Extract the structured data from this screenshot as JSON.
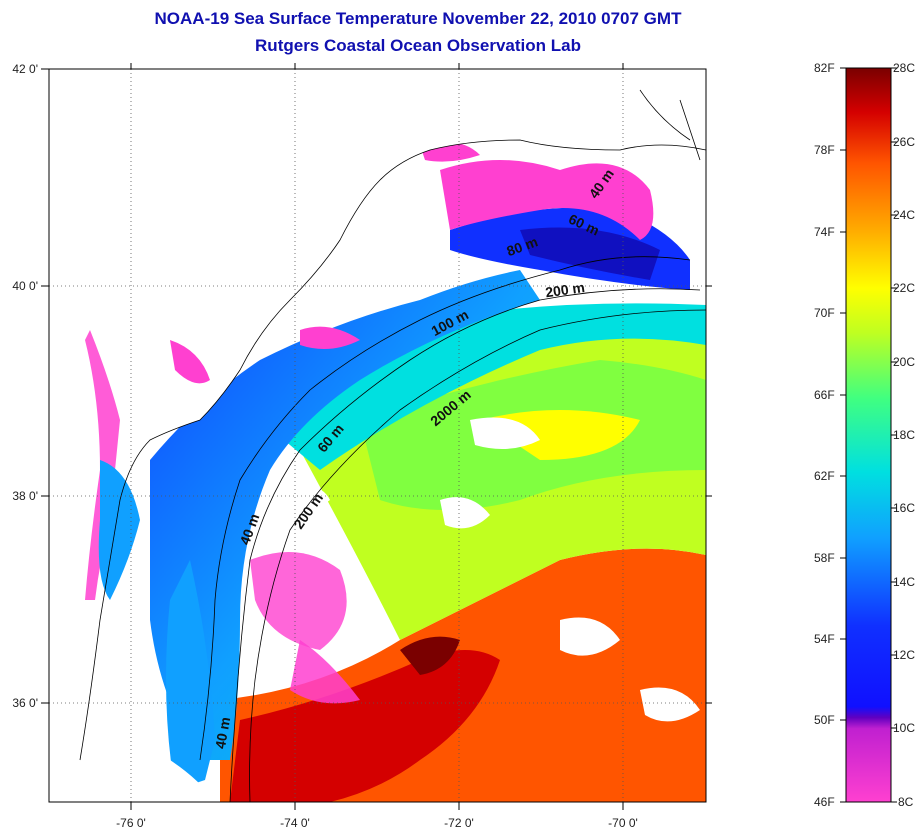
{
  "header": {
    "title": "NOAA-19 Sea Surface Temperature November 22, 2010 0707 GMT",
    "subtitle": "Rutgers Coastal Ocean Observation Lab"
  },
  "map": {
    "lat_labels": [
      "42 0'",
      "40 0'",
      "38 0'",
      "36 0'"
    ],
    "lon_labels": [
      "-76 0'",
      "-74 0'",
      "-72 0'",
      "-70 0'"
    ],
    "contour_labels": [
      "40 m",
      "60 m",
      "80 m",
      "200 m",
      "100 m",
      "2000 m",
      "60 m",
      "200 m",
      "40 m",
      "40 m"
    ]
  },
  "colorbar": {
    "fahrenheit_labels": [
      "82F",
      "78F",
      "74F",
      "70F",
      "66F",
      "62F",
      "58F",
      "54F",
      "50F",
      "46F"
    ],
    "celsius_labels": [
      "28C",
      "26C",
      "24C",
      "22C",
      "20C",
      "18C",
      "16C",
      "14C",
      "12C",
      "10C",
      "8C"
    ],
    "colors": {
      "28C": "#7a0000",
      "26C": "#d40000",
      "24C": "#ff5500",
      "22C": "#ffaa00",
      "20C": "#ffff00",
      "18C": "#80ff40",
      "16C": "#00e0e0",
      "14C": "#10a0ff",
      "12C": "#1030ff",
      "10C": "#6000c0",
      "8C": "#ff40d0"
    }
  }
}
